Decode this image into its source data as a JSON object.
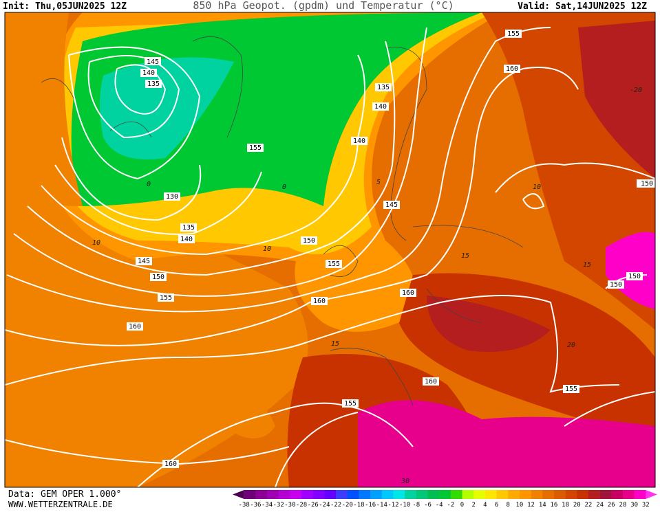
{
  "header": {
    "init": "Init: Thu,05JUN2025 12Z",
    "title": "850 hPa Geopot. (gpdm) und Temperatur (°C)",
    "valid": "Valid: Sat,14JUN2025 12Z"
  },
  "footer": {
    "source": "Data: GEM OPER 1.000°",
    "site": "WWW.WETTERZENTRALE.DE"
  },
  "legend": {
    "labels": [
      -38,
      -36,
      -34,
      -32,
      -30,
      -28,
      -26,
      -24,
      -22,
      -20,
      -18,
      -16,
      -14,
      -12,
      -10,
      -8,
      -6,
      -4,
      -2,
      0,
      2,
      4,
      6,
      8,
      10,
      12,
      14,
      16,
      18,
      20,
      22,
      24,
      26,
      28,
      30,
      32
    ],
    "colors": [
      "#4b0050",
      "#6e0078",
      "#8c0096",
      "#a000b4",
      "#b400d2",
      "#c800f0",
      "#a000ff",
      "#8200ff",
      "#6400ff",
      "#3c3cff",
      "#0050ff",
      "#0078ff",
      "#00a0ff",
      "#00c8ff",
      "#00e6e6",
      "#00d2a0",
      "#00c878",
      "#00be50",
      "#00c832",
      "#32dc00",
      "#b4ff00",
      "#e6ff00",
      "#ffe600",
      "#ffc800",
      "#ffaa00",
      "#ff9600",
      "#f08200",
      "#e66e00",
      "#dc5a00",
      "#d24600",
      "#c83200",
      "#b41e1e",
      "#a0143c",
      "#c80064",
      "#e6008c",
      "#ff00c8",
      "#ff32f0"
    ]
  },
  "contour_labels": [
    "145",
    "140",
    "135",
    "130",
    "135",
    "140",
    "145",
    "150",
    "155",
    "160",
    "160",
    "155",
    "160",
    "150",
    "155",
    "160",
    "155",
    "160",
    "150",
    "150",
    "150",
    "145",
    "140",
    "140",
    "135",
    "160",
    "155",
    "155"
  ],
  "temperature_labels": [
    "10",
    "0",
    "0",
    "5",
    "10",
    "15",
    "15",
    "20",
    "30",
    "-20",
    "10",
    "15"
  ]
}
